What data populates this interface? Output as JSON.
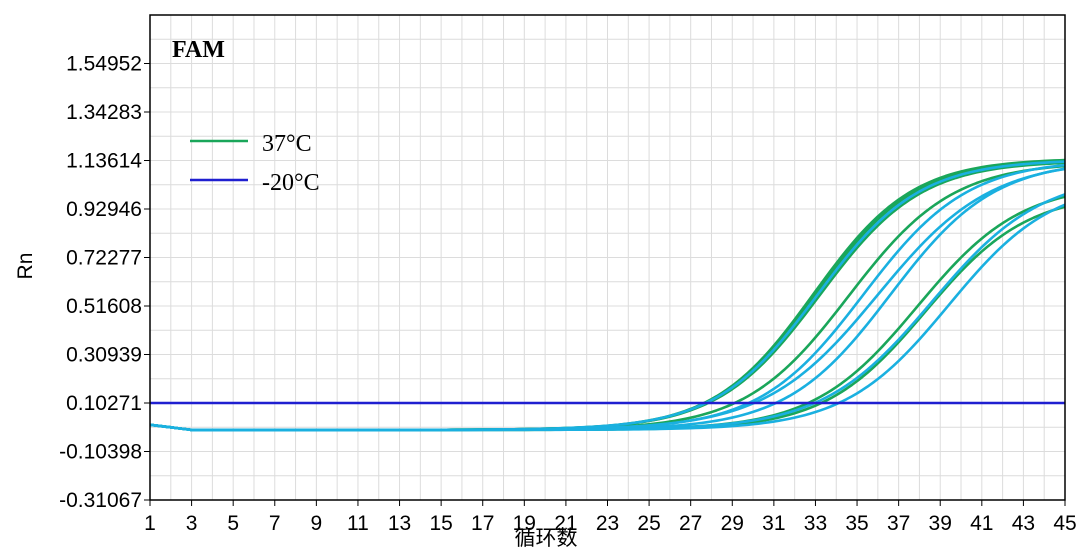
{
  "chart_data": {
    "type": "line",
    "title": "FAM",
    "xlabel": "循环数",
    "ylabel": "Rn",
    "x_ticks": [
      "1",
      "3",
      "5",
      "7",
      "9",
      "11",
      "13",
      "15",
      "17",
      "19",
      "21",
      "23",
      "25",
      "27",
      "29",
      "31",
      "33",
      "35",
      "37",
      "39",
      "41",
      "43",
      "45"
    ],
    "y_ticks": [
      "-0.31067",
      "-0.10398",
      "0.10271",
      "0.30939",
      "0.51608",
      "0.72277",
      "0.92946",
      "1.13614",
      "1.34283",
      "1.54952"
    ],
    "xlim": [
      1,
      45
    ],
    "ylim": [
      -0.31067,
      1.7562
    ],
    "grid": true,
    "legend_position": "top-left",
    "legend": [
      {
        "label": "37°C",
        "color": "#1aa65a"
      },
      {
        "label": "-20°C",
        "color": "#1f1fd0"
      }
    ],
    "threshold": {
      "value": 0.10271,
      "color": "#1f1fd0"
    },
    "series": [
      {
        "group": "37°C",
        "color": "#1aa65a",
        "baseline": -0.012,
        "plateau": 1.145,
        "midpoint": 32.9,
        "slope": 0.42
      },
      {
        "group": "37°C",
        "color": "#1aa65a",
        "baseline": -0.012,
        "plateau": 1.14,
        "midpoint": 33.0,
        "slope": 0.42
      },
      {
        "group": "37°C",
        "color": "#1aa65a",
        "baseline": -0.012,
        "plateau": 1.135,
        "midpoint": 33.2,
        "slope": 0.41
      },
      {
        "group": "37°C",
        "color": "#1aa65a",
        "baseline": -0.012,
        "plateau": 1.13,
        "midpoint": 34.6,
        "slope": 0.4
      },
      {
        "group": "37°C",
        "color": "#1aa65a",
        "baseline": -0.012,
        "plateau": 1.04,
        "midpoint": 37.9,
        "slope": 0.4
      },
      {
        "group": "37°C",
        "color": "#1aa65a",
        "baseline": -0.012,
        "plateau": 1.0,
        "midpoint": 38.3,
        "slope": 0.41
      },
      {
        "group": "-20°C",
        "color": "#1ab0e0",
        "baseline": -0.012,
        "plateau": 1.14,
        "midpoint": 33.1,
        "slope": 0.41
      },
      {
        "group": "-20°C",
        "color": "#1ab0e0",
        "baseline": -0.012,
        "plateau": 1.14,
        "midpoint": 35.3,
        "slope": 0.4
      },
      {
        "group": "-20°C",
        "color": "#1ab0e0",
        "baseline": -0.012,
        "plateau": 1.14,
        "midpoint": 36.6,
        "slope": 0.4
      },
      {
        "group": "-20°C",
        "color": "#1ab0e0",
        "baseline": -0.012,
        "plateau": 1.14,
        "midpoint": 36.0,
        "slope": 0.37
      },
      {
        "group": "-20°C",
        "color": "#1ab0e0",
        "baseline": -0.012,
        "plateau": 1.08,
        "midpoint": 38.6,
        "slope": 0.38
      },
      {
        "group": "-20°C",
        "color": "#1ab0e0",
        "baseline": -0.012,
        "plateau": 1.05,
        "midpoint": 39.4,
        "slope": 0.4
      }
    ]
  }
}
